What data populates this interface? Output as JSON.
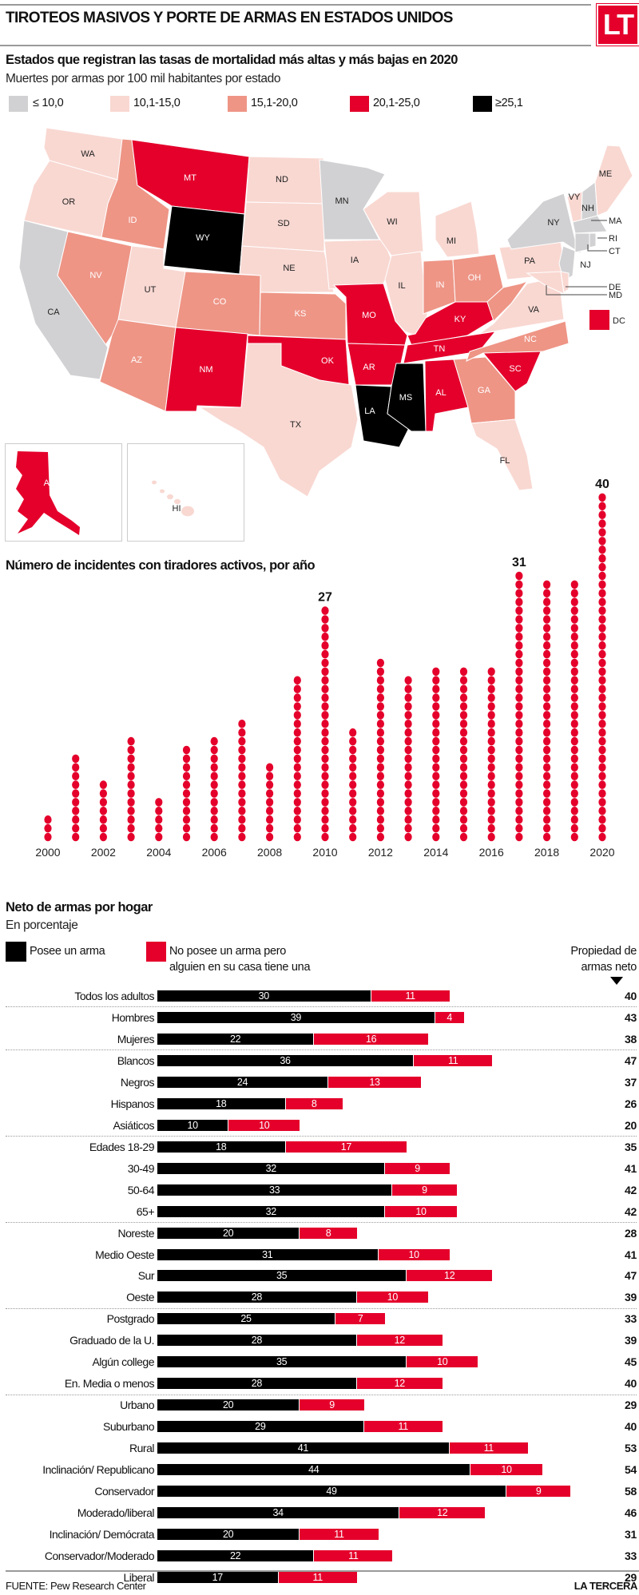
{
  "header": {
    "title": "TIROTEOS MASIVOS Y PORTE DE ARMAS EN ESTADOS UNIDOS",
    "logo": "LT"
  },
  "map": {
    "title": "Estados que registran las tasas de mortalidad más altas y más bajas en 2020",
    "subtitle": "Muertes por armas por 100 mil habitantes por estado",
    "legend": [
      {
        "label": "≤ 10,0",
        "color": "#d1d1d3"
      },
      {
        "label": "10,1-15,0",
        "color": "#f9d8d2"
      },
      {
        "label": "15,1-20,0",
        "color": "#ee9586"
      },
      {
        "label": "20,1-25,0",
        "color": "#e4002b"
      },
      {
        "label": "≥25,1",
        "color": "#000000"
      }
    ],
    "states": {
      "WA": 1,
      "OR": 1,
      "CA": 0,
      "ID": 2,
      "NV": 2,
      "MT": 3,
      "WY": 4,
      "UT": 1,
      "AZ": 2,
      "CO": 2,
      "NM": 3,
      "ND": 1,
      "SD": 1,
      "NE": 1,
      "KS": 2,
      "OK": 3,
      "TX": 1,
      "MN": 0,
      "IA": 1,
      "MO": 3,
      "AR": 3,
      "LA": 4,
      "WI": 1,
      "IL": 1,
      "MI": 1,
      "IN": 2,
      "OH": 2,
      "KY": 3,
      "TN": 3,
      "MS": 4,
      "AL": 3,
      "GA": 2,
      "FL": 1,
      "SC": 3,
      "NC": 2,
      "VA": 1,
      "WV": 2,
      "PA": 1,
      "NY": 0,
      "NJ": 0,
      "VY": 1,
      "NH": 0,
      "ME": 1,
      "MA": 0,
      "RI": 0,
      "CT": 0,
      "DE": 1,
      "MD": 1,
      "DC": 3,
      "AK": 3,
      "HI": 1
    }
  },
  "chart_data": [
    {
      "type": "bar",
      "title": "Número de incidentes con tiradores activos, por año",
      "categories": [
        "2000",
        "2001",
        "2002",
        "2003",
        "2004",
        "2005",
        "2006",
        "2007",
        "2008",
        "2009",
        "2010",
        "2011",
        "2012",
        "2013",
        "2014",
        "2015",
        "2016",
        "2017",
        "2018",
        "2019",
        "2020"
      ],
      "values": [
        3,
        10,
        7,
        12,
        5,
        11,
        12,
        14,
        9,
        19,
        27,
        13,
        21,
        19,
        20,
        20,
        20,
        31,
        30,
        30,
        40
      ],
      "tick_labels": [
        "2000",
        "2002",
        "2004",
        "2006",
        "2008",
        "2010",
        "2012",
        "2014",
        "2016",
        "2018",
        "2020"
      ],
      "data_labels": {
        "2010": "27",
        "2017": "31",
        "2020": "40"
      },
      "color": "#e4002b"
    },
    {
      "type": "bar",
      "title": "Neto de armas por hogar",
      "subtitle": "En porcentaje",
      "stacked": true,
      "orientation": "horizontal",
      "net_header": [
        "Propiedad de",
        "armas neto"
      ],
      "series": [
        {
          "name": "Posee un arma",
          "color": "#000000"
        },
        {
          "name_lines": [
            "No posee un arma pero",
            "alguien en su casa tiene una"
          ],
          "color": "#e4002b"
        }
      ],
      "rows": [
        {
          "label": "Todos los adultos",
          "own": 30,
          "other": 11,
          "net": 40,
          "sep": true
        },
        {
          "label": "Hombres",
          "own": 39,
          "other": 4,
          "net": 43
        },
        {
          "label": "Mujeres",
          "own": 22,
          "other": 16,
          "net": 38,
          "sep": true
        },
        {
          "label": "Blancos",
          "own": 36,
          "other": 11,
          "net": 47
        },
        {
          "label": "Negros",
          "own": 24,
          "other": 13,
          "net": 37
        },
        {
          "label": "Hispanos",
          "own": 18,
          "other": 8,
          "net": 26
        },
        {
          "label": "Asiáticos",
          "own": 10,
          "other": 10,
          "net": 20,
          "sep": true
        },
        {
          "label": "Edades 18-29",
          "own": 18,
          "other": 17,
          "net": 35
        },
        {
          "label": "30-49",
          "own": 32,
          "other": 9,
          "net": 41
        },
        {
          "label": "50-64",
          "own": 33,
          "other": 9,
          "net": 42
        },
        {
          "label": "65+",
          "own": 32,
          "other": 10,
          "net": 42,
          "sep": true
        },
        {
          "label": "Noreste",
          "own": 20,
          "other": 8,
          "net": 28
        },
        {
          "label": "Medio Oeste",
          "own": 31,
          "other": 10,
          "net": 41
        },
        {
          "label": "Sur",
          "own": 35,
          "other": 12,
          "net": 47
        },
        {
          "label": "Oeste",
          "own": 28,
          "other": 10,
          "net": 39,
          "sep": true
        },
        {
          "label": "Postgrado",
          "own": 25,
          "other": 7,
          "net": 33
        },
        {
          "label": "Graduado de la U.",
          "own": 28,
          "other": 12,
          "net": 39
        },
        {
          "label": "Algún college",
          "own": 35,
          "other": 10,
          "net": 45
        },
        {
          "label": "En. Media o menos",
          "own": 28,
          "other": 12,
          "net": 40,
          "sep": true
        },
        {
          "label": "Urbano",
          "own": 20,
          "other": 9,
          "net": 29
        },
        {
          "label": "Suburbano",
          "own": 29,
          "other": 11,
          "net": 40
        },
        {
          "label": "Rural",
          "own": 41,
          "other": 11,
          "net": 53
        },
        {
          "label": "Inclinación/ Republicano",
          "own": 44,
          "other": 10,
          "net": 54
        },
        {
          "label": "Conservador",
          "own": 49,
          "other": 9,
          "net": 58
        },
        {
          "label": "Moderado/liberal",
          "own": 34,
          "other": 12,
          "net": 46
        },
        {
          "label": "Inclinación/ Demócrata",
          "own": 20,
          "other": 11,
          "net": 31
        },
        {
          "label": "Conservador/Moderado",
          "own": 22,
          "other": 11,
          "net": 33
        },
        {
          "label": "Liberal",
          "own": 17,
          "other": 11,
          "net": 29
        }
      ]
    }
  ],
  "footer": {
    "source": "FUENTE: Pew Research Center",
    "brand": "LA TERCERA"
  }
}
